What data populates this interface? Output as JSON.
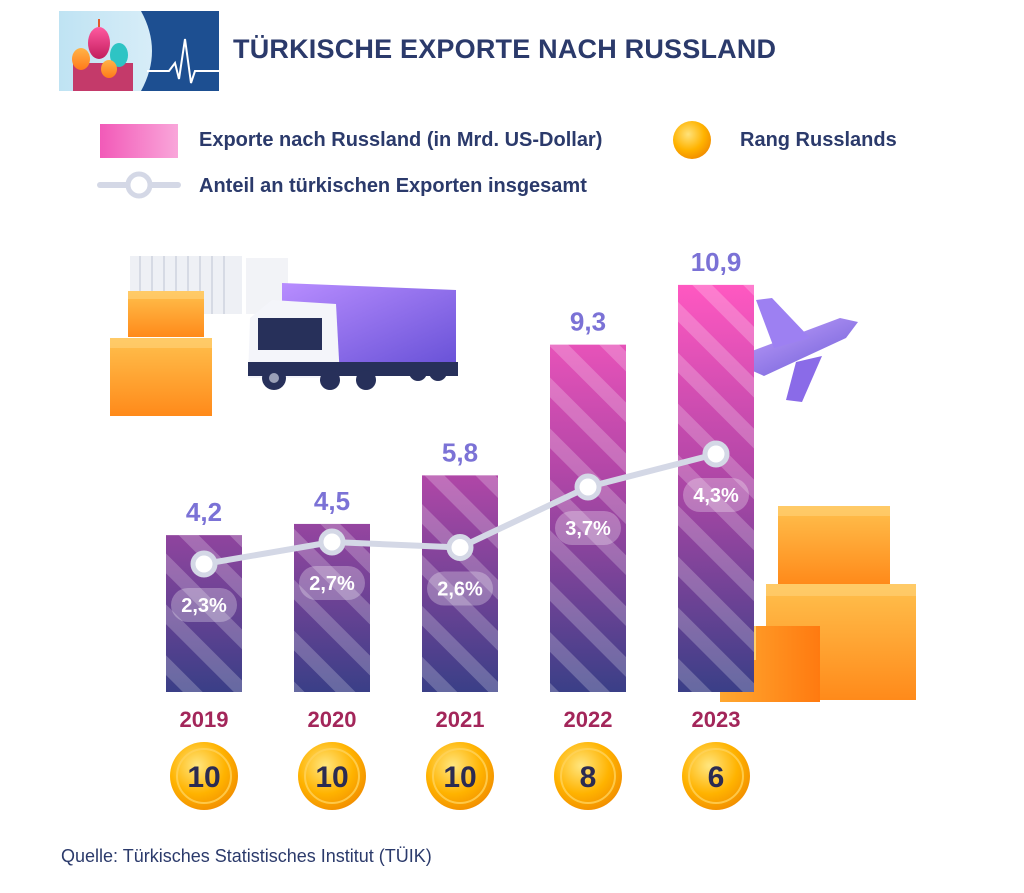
{
  "header": {
    "title": "TÜRKISCHE EXPORTE NACH RUSSLAND"
  },
  "legend": {
    "exports_label": "Exporte nach Russland (in Mrd. US-Dollar)",
    "rank_label": "Rang Russlands",
    "share_label": "Anteil an türkischen Exporten insgesamt"
  },
  "colors": {
    "bar_top": "#ff58c1",
    "bar_bottom": "#3b3f87",
    "value_label": "#7b72d6",
    "year_label": "#a3265a",
    "line": "#d4d8e6",
    "coin": "#ffb300",
    "title": "#2b3a6b"
  },
  "chart_data": {
    "type": "bar",
    "title": "TÜRKISCHE EXPORTE NACH RUSSLAND",
    "categories": [
      "2019",
      "2020",
      "2021",
      "2022",
      "2023"
    ],
    "series": [
      {
        "name": "Exporte nach Russland (in Mrd. US-Dollar)",
        "type": "bar",
        "values": [
          4.2,
          4.5,
          5.8,
          9.3,
          10.9
        ],
        "labels": [
          "4,2",
          "4,5",
          "5,8",
          "9,3",
          "10,9"
        ]
      },
      {
        "name": "Anteil an türkischen Exporten insgesamt",
        "type": "line",
        "values": [
          2.3,
          2.7,
          2.6,
          3.7,
          4.3
        ],
        "labels": [
          "2,3%",
          "2,7%",
          "2,6%",
          "3,7%",
          "4,3%"
        ]
      },
      {
        "name": "Rang Russlands",
        "type": "rank",
        "values": [
          10,
          10,
          10,
          8,
          6
        ]
      }
    ],
    "xlabel": "",
    "ylabel": "",
    "ylim": [
      0,
      12
    ],
    "grid": false,
    "legend_position": "top"
  },
  "source": "Quelle: Türkisches Statistisches Institut (TÜIK)"
}
